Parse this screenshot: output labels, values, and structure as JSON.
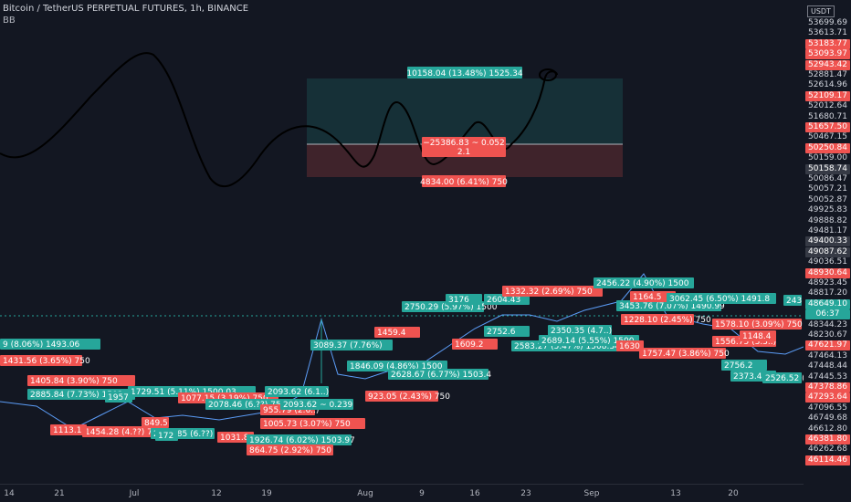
{
  "header": {
    "title": "Bitcoin / TetherUS PERPETUAL FUTURES, 1h, BINANCE",
    "indicator": "BB"
  },
  "currency_badge": "USDT",
  "measure_box": {
    "top_label": "10158.04 (13.48%) 1525.34",
    "mid_label_1": "−25386.83 ~ 0.052",
    "mid_label_2": "2.1",
    "bottom_label": "4834.00 (6.41%) 750"
  },
  "overlay_labels": [
    {
      "text": "9 (8.06%) 1493.06",
      "color": "#26a69a"
    },
    {
      "text": "1431.56 (3.65%) 750",
      "color": "#ef5350"
    },
    {
      "text": "1405.84 (3.90%) 750",
      "color": "#ef5350"
    },
    {
      "text": "2885.84 (7.73%) 1503",
      "color": "#26a69a"
    },
    {
      "text": "1729.51 (5.11%) 1500.03",
      "color": "#26a69a"
    },
    {
      "text": "1077.15 (3.19%) 750",
      "color": "#ef5350"
    },
    {
      "text": "2078.46 (6.??) 750",
      "color": "#26a69a"
    },
    {
      "text": "955.79 (2.6..)",
      "color": "#ef5350"
    },
    {
      "text": "1454.28 (4.??) 750",
      "color": "#ef5350"
    },
    {
      "text": "2290.85 (6.??)",
      "color": "#26a69a"
    },
    {
      "text": "1031.8",
      "color": "#ef5350"
    },
    {
      "text": "2093.62 (6.1..)",
      "color": "#26a69a"
    },
    {
      "text": "2093.62 ~ 0.239",
      "color": "#26a69a"
    },
    {
      "text": "1005.73 (3.07%) 750",
      "color": "#ef5350"
    },
    {
      "text": "1926.74 (6.02%) 1503.97",
      "color": "#26a69a"
    },
    {
      "text": "864.75 (2.92%) 750",
      "color": "#ef5350"
    },
    {
      "text": "3089.37 (7.76%)",
      "color": "#26a69a"
    },
    {
      "text": "1846.09 (4.86%) 1500",
      "color": "#26a69a"
    },
    {
      "text": "923.05 (2.43%) 750",
      "color": "#ef5350"
    },
    {
      "text": "2628.67 (6.77%) 1503.4",
      "color": "#26a69a"
    },
    {
      "text": "1459.4",
      "color": "#ef5350"
    },
    {
      "text": "2750.29 (5.97%) 1500",
      "color": "#26a69a"
    },
    {
      "text": "3176",
      "color": "#26a69a"
    },
    {
      "text": "2604.43",
      "color": "#26a69a"
    },
    {
      "text": "1332.32 (2.69%) 750",
      "color": "#ef5350"
    },
    {
      "text": "1609.2",
      "color": "#ef5350"
    },
    {
      "text": "2752.6",
      "color": "#26a69a"
    },
    {
      "text": "2583.27 (5.47%) 1508.34",
      "color": "#26a69a"
    },
    {
      "text": "2689.14 (5.55%) 1500",
      "color": "#26a69a"
    },
    {
      "text": "2350.35 (4.7..)",
      "color": "#26a69a"
    },
    {
      "text": "2456.22 (4.90%) 1500",
      "color": "#26a69a"
    },
    {
      "text": "3453.76 (7.07%) 1490.99",
      "color": "#26a69a"
    },
    {
      "text": "1164.5",
      "color": "#ef5350"
    },
    {
      "text": "1228.10 (2.45%) 750",
      "color": "#ef5350"
    },
    {
      "text": "3062.45 (6.50%) 1491.8",
      "color": "#26a69a"
    },
    {
      "text": "1578.10 (3.09%) 750",
      "color": "#ef5350"
    },
    {
      "text": "1757.47 (3.86%) 750",
      "color": "#ef5350"
    },
    {
      "text": "1630",
      "color": "#ef5350"
    },
    {
      "text": "1556.75 (3.3..)",
      "color": "#ef5350"
    },
    {
      "text": "2756.2",
      "color": "#26a69a"
    },
    {
      "text": "2373.40",
      "color": "#26a69a"
    },
    {
      "text": "2526.52 (5..)",
      "color": "#26a69a"
    },
    {
      "text": "1148.4",
      "color": "#ef5350"
    },
    {
      "text": "243",
      "color": "#26a69a"
    },
    {
      "text": "1113.1",
      "color": "#ef5350"
    },
    {
      "text": "172",
      "color": "#26a69a"
    },
    {
      "text": "1957",
      "color": "#26a69a"
    },
    {
      "text": "849.5",
      "color": "#ef5350"
    }
  ],
  "chart_data": {
    "type": "line",
    "title": "Bitcoin / TetherUS PERPETUAL FUTURES, 1h, BINANCE",
    "xlabel": "",
    "ylabel": "",
    "grid": false,
    "x_ticks": [
      "14",
      "21",
      "Jul",
      "12",
      "19",
      "Aug",
      "9",
      "16",
      "23",
      "Sep",
      "13",
      "20"
    ],
    "y_ticks": [
      {
        "value": "53699.69",
        "bg": ""
      },
      {
        "value": "53613.71",
        "bg": ""
      },
      {
        "value": "53183.77",
        "bg": "#ef5350"
      },
      {
        "value": "53093.97",
        "bg": "#ef5350"
      },
      {
        "value": "52943.42",
        "bg": "#ef5350"
      },
      {
        "value": "52881.47",
        "bg": ""
      },
      {
        "value": "52614.96",
        "bg": ""
      },
      {
        "value": "52109.17",
        "bg": "#ef5350"
      },
      {
        "value": "52012.64",
        "bg": ""
      },
      {
        "value": "51680.71",
        "bg": ""
      },
      {
        "value": "51657.50",
        "bg": "#ef5350"
      },
      {
        "value": "50467.15",
        "bg": ""
      },
      {
        "value": "50250.84",
        "bg": "#ef5350"
      },
      {
        "value": "50159.00",
        "bg": ""
      },
      {
        "value": "50158.74",
        "bg": "#363a45"
      },
      {
        "value": "50086.47",
        "bg": ""
      },
      {
        "value": "50057.21",
        "bg": ""
      },
      {
        "value": "50052.87",
        "bg": ""
      },
      {
        "value": "49925.83",
        "bg": ""
      },
      {
        "value": "49888.82",
        "bg": ""
      },
      {
        "value": "49481.17",
        "bg": ""
      },
      {
        "value": "49400.33",
        "bg": "#363a45"
      },
      {
        "value": "49087.62",
        "bg": "#363a45"
      },
      {
        "value": "49036.51",
        "bg": ""
      },
      {
        "value": "48930.64",
        "bg": "#ef5350"
      },
      {
        "value": "48923.45",
        "bg": ""
      },
      {
        "value": "48817.20",
        "bg": ""
      },
      {
        "value": "48649.10",
        "bg": "#26a69a"
      },
      {
        "value": "06:37",
        "bg": "#26a69a"
      },
      {
        "value": "48344.23",
        "bg": ""
      },
      {
        "value": "48230.67",
        "bg": ""
      },
      {
        "value": "47621.97",
        "bg": "#ef5350"
      },
      {
        "value": "47464.13",
        "bg": ""
      },
      {
        "value": "47448.44",
        "bg": ""
      },
      {
        "value": "47445.53",
        "bg": ""
      },
      {
        "value": "47378.86",
        "bg": "#ef5350"
      },
      {
        "value": "47293.64",
        "bg": "#ef5350"
      },
      {
        "value": "47096.55",
        "bg": ""
      },
      {
        "value": "46749.68",
        "bg": ""
      },
      {
        "value": "46612.80",
        "bg": ""
      },
      {
        "value": "46381.80",
        "bg": "#ef5350"
      },
      {
        "value": "46262.68",
        "bg": ""
      },
      {
        "value": "46114.46",
        "bg": "#ef5350"
      }
    ],
    "measure": {
      "target_profit": 10158.04,
      "target_profit_pct": 13.48,
      "target_qty": 1525.34,
      "stop_loss": 4834.0,
      "stop_loss_pct": 6.41,
      "stop_qty": 750,
      "ratio": 2.1
    }
  }
}
